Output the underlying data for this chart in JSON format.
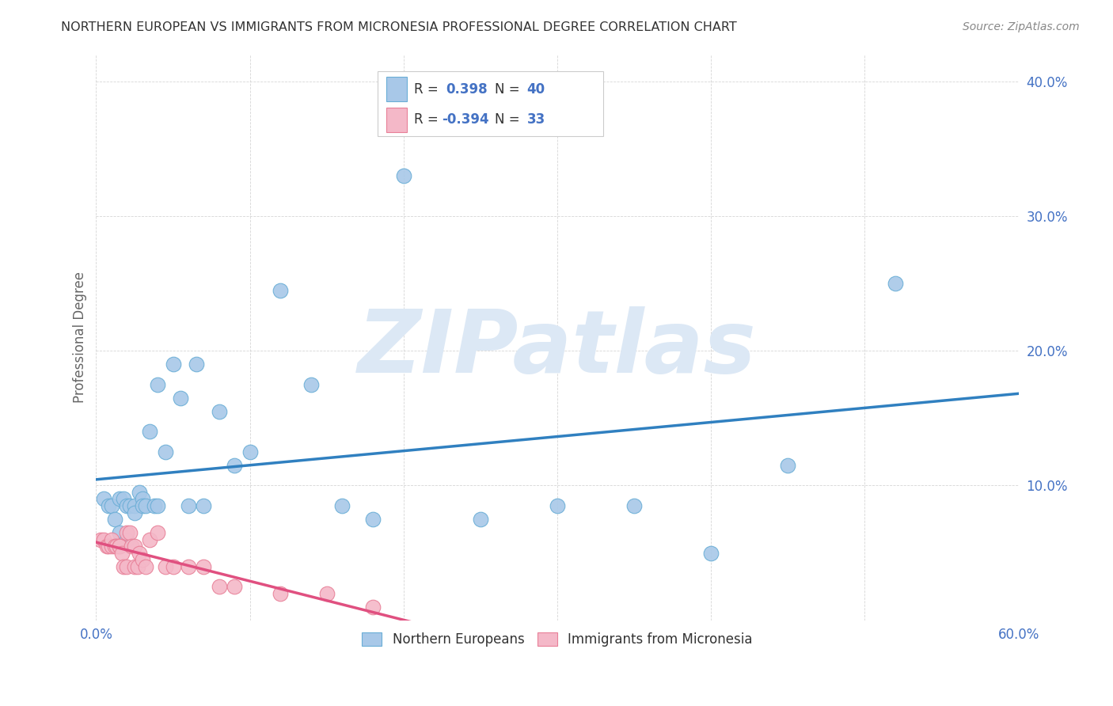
{
  "title": "NORTHERN EUROPEAN VS IMMIGRANTS FROM MICRONESIA PROFESSIONAL DEGREE CORRELATION CHART",
  "source": "Source: ZipAtlas.com",
  "ylabel": "Professional Degree",
  "legend_blue_r": "0.398",
  "legend_blue_n": "40",
  "legend_pink_r": "-0.394",
  "legend_pink_n": "33",
  "legend_label_blue": "Northern Europeans",
  "legend_label_pink": "Immigrants from Micronesia",
  "blue_color": "#a8c8e8",
  "blue_edge_color": "#6aaed6",
  "pink_color": "#f4b8c8",
  "pink_edge_color": "#e88098",
  "blue_line_color": "#3080c0",
  "pink_line_color": "#e05080",
  "watermark_text": "ZIPatlas",
  "watermark_color": "#dce8f5",
  "title_color": "#333333",
  "source_color": "#888888",
  "axis_label_color": "#4472c4",
  "ylabel_color": "#666666",
  "grid_color": "#cccccc",
  "legend_text_color": "#333333",
  "legend_value_color": "#4472c4",
  "blue_x": [
    0.005,
    0.008,
    0.01,
    0.012,
    0.015,
    0.015,
    0.018,
    0.02,
    0.02,
    0.022,
    0.025,
    0.025,
    0.028,
    0.03,
    0.03,
    0.032,
    0.035,
    0.038,
    0.04,
    0.04,
    0.045,
    0.05,
    0.055,
    0.06,
    0.065,
    0.07,
    0.08,
    0.09,
    0.1,
    0.12,
    0.14,
    0.16,
    0.18,
    0.2,
    0.25,
    0.3,
    0.35,
    0.4,
    0.45,
    0.52
  ],
  "blue_y": [
    0.09,
    0.085,
    0.085,
    0.075,
    0.09,
    0.065,
    0.09,
    0.085,
    0.06,
    0.085,
    0.085,
    0.08,
    0.095,
    0.09,
    0.085,
    0.085,
    0.14,
    0.085,
    0.175,
    0.085,
    0.125,
    0.19,
    0.165,
    0.085,
    0.19,
    0.085,
    0.155,
    0.115,
    0.125,
    0.245,
    0.175,
    0.085,
    0.075,
    0.33,
    0.075,
    0.085,
    0.085,
    0.05,
    0.115,
    0.25
  ],
  "pink_x": [
    0.003,
    0.005,
    0.007,
    0.008,
    0.01,
    0.01,
    0.012,
    0.013,
    0.015,
    0.015,
    0.017,
    0.018,
    0.02,
    0.02,
    0.022,
    0.023,
    0.025,
    0.025,
    0.027,
    0.028,
    0.03,
    0.032,
    0.035,
    0.04,
    0.045,
    0.05,
    0.06,
    0.07,
    0.08,
    0.09,
    0.12,
    0.15,
    0.18
  ],
  "pink_y": [
    0.06,
    0.06,
    0.055,
    0.055,
    0.055,
    0.06,
    0.055,
    0.055,
    0.055,
    0.055,
    0.05,
    0.04,
    0.065,
    0.04,
    0.065,
    0.055,
    0.04,
    0.055,
    0.04,
    0.05,
    0.045,
    0.04,
    0.06,
    0.065,
    0.04,
    0.04,
    0.04,
    0.04,
    0.025,
    0.025,
    0.02,
    0.02,
    0.01
  ],
  "xlim": [
    0.0,
    0.6
  ],
  "ylim": [
    0.0,
    0.42
  ],
  "x_ticks": [
    0.0,
    0.1,
    0.2,
    0.3,
    0.4,
    0.5,
    0.6
  ],
  "x_tick_labels": [
    "0.0%",
    "",
    "",
    "",
    "",
    "",
    "60.0%"
  ],
  "y_ticks": [
    0.0,
    0.1,
    0.2,
    0.3,
    0.4
  ],
  "y_tick_labels": [
    "",
    "10.0%",
    "20.0%",
    "30.0%",
    "40.0%"
  ]
}
